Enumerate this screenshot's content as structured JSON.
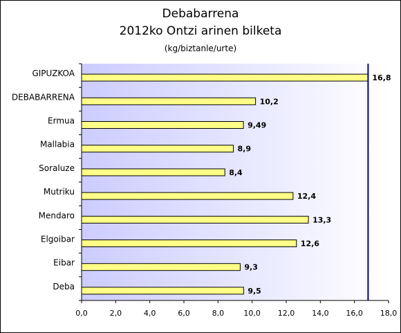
{
  "chart_data": {
    "type": "bar",
    "orientation": "horizontal",
    "title": "Debabarrena",
    "subtitle": "2012ko Ontzi arinen bilketa",
    "unit": "(kg/biztanle/urte)",
    "xlim": [
      0,
      18
    ],
    "xticks": [
      "0,0",
      "2,0",
      "4,0",
      "6,0",
      "8,0",
      "10,0",
      "12,0",
      "14,0",
      "16,0",
      "18,0"
    ],
    "reference_line": 16.8,
    "categories": [
      "GIPUZKOA",
      "DEBABARRENA",
      "Ermua",
      "Mallabia",
      "Soraluze",
      "Mutriku",
      "Mendaro",
      "Elgoibar",
      "Eibar",
      "Deba"
    ],
    "values": [
      16.8,
      10.2,
      9.49,
      8.9,
      8.4,
      12.4,
      13.3,
      12.6,
      9.3,
      9.5
    ],
    "value_labels": [
      "16,8",
      "10,2",
      "9,49",
      "8,9",
      "8,4",
      "12,4",
      "13,3",
      "12,6",
      "9,3",
      "9,5"
    ],
    "colors": {
      "bar_fill": "#ffff88",
      "bar_stroke": "#000000",
      "plot_bg_left": "#ccccff",
      "plot_bg_right": "#ffffff",
      "reference_line": "#000080"
    }
  }
}
